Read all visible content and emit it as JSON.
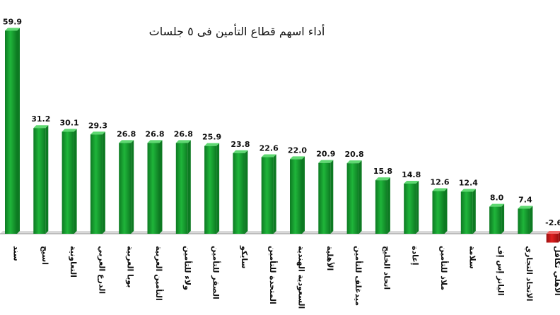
{
  "chart_data": {
    "type": "bar",
    "title": "أداء اسهم قطاع التأمين فى ٥ جلسات",
    "xlabel": "",
    "ylabel": "",
    "categories": [
      "سند",
      "اسيج",
      "التعاونية",
      "الدرع العربي",
      "بوبا العربية",
      "التأمين العربية",
      "ولاء للتأمين",
      "الصقر للتأمين",
      "سايكو",
      "المتحدة للتأمين",
      "السعودية الهندية",
      "الأهلية",
      "ميدغلف للتأمين",
      "اتحاد الخليج",
      "إعادة",
      "ملاذ للتأمين",
      "سلامة",
      "اليانز إس إف",
      "الاتحاد التجاري",
      "الأهلي تكافل"
    ],
    "values": [
      59.9,
      31.2,
      30.1,
      29.3,
      26.8,
      26.8,
      26.8,
      25.9,
      23.8,
      22.6,
      22.0,
      20.9,
      20.8,
      15.8,
      14.8,
      12.6,
      12.4,
      8.0,
      7.4,
      -2.6
    ],
    "value_labels": [
      "59.9",
      "31.2",
      "30.1",
      "29.3",
      "26.8",
      "26.8",
      "26.8",
      "25.9",
      "23.8",
      "22.6",
      "22.0",
      "20.9",
      "20.8",
      "15.8",
      "14.8",
      "12.6",
      "12.4",
      "8.0",
      "7.4",
      "-2.6"
    ],
    "ylim": [
      -3,
      62
    ],
    "grid": false,
    "legend": "none",
    "colors": {
      "positive": "#1fb53a",
      "positive_dark": "#0d7a22",
      "negative": "#e02020",
      "negative_dark": "#9a0f0f",
      "baseline": "#9a9a9a"
    }
  }
}
